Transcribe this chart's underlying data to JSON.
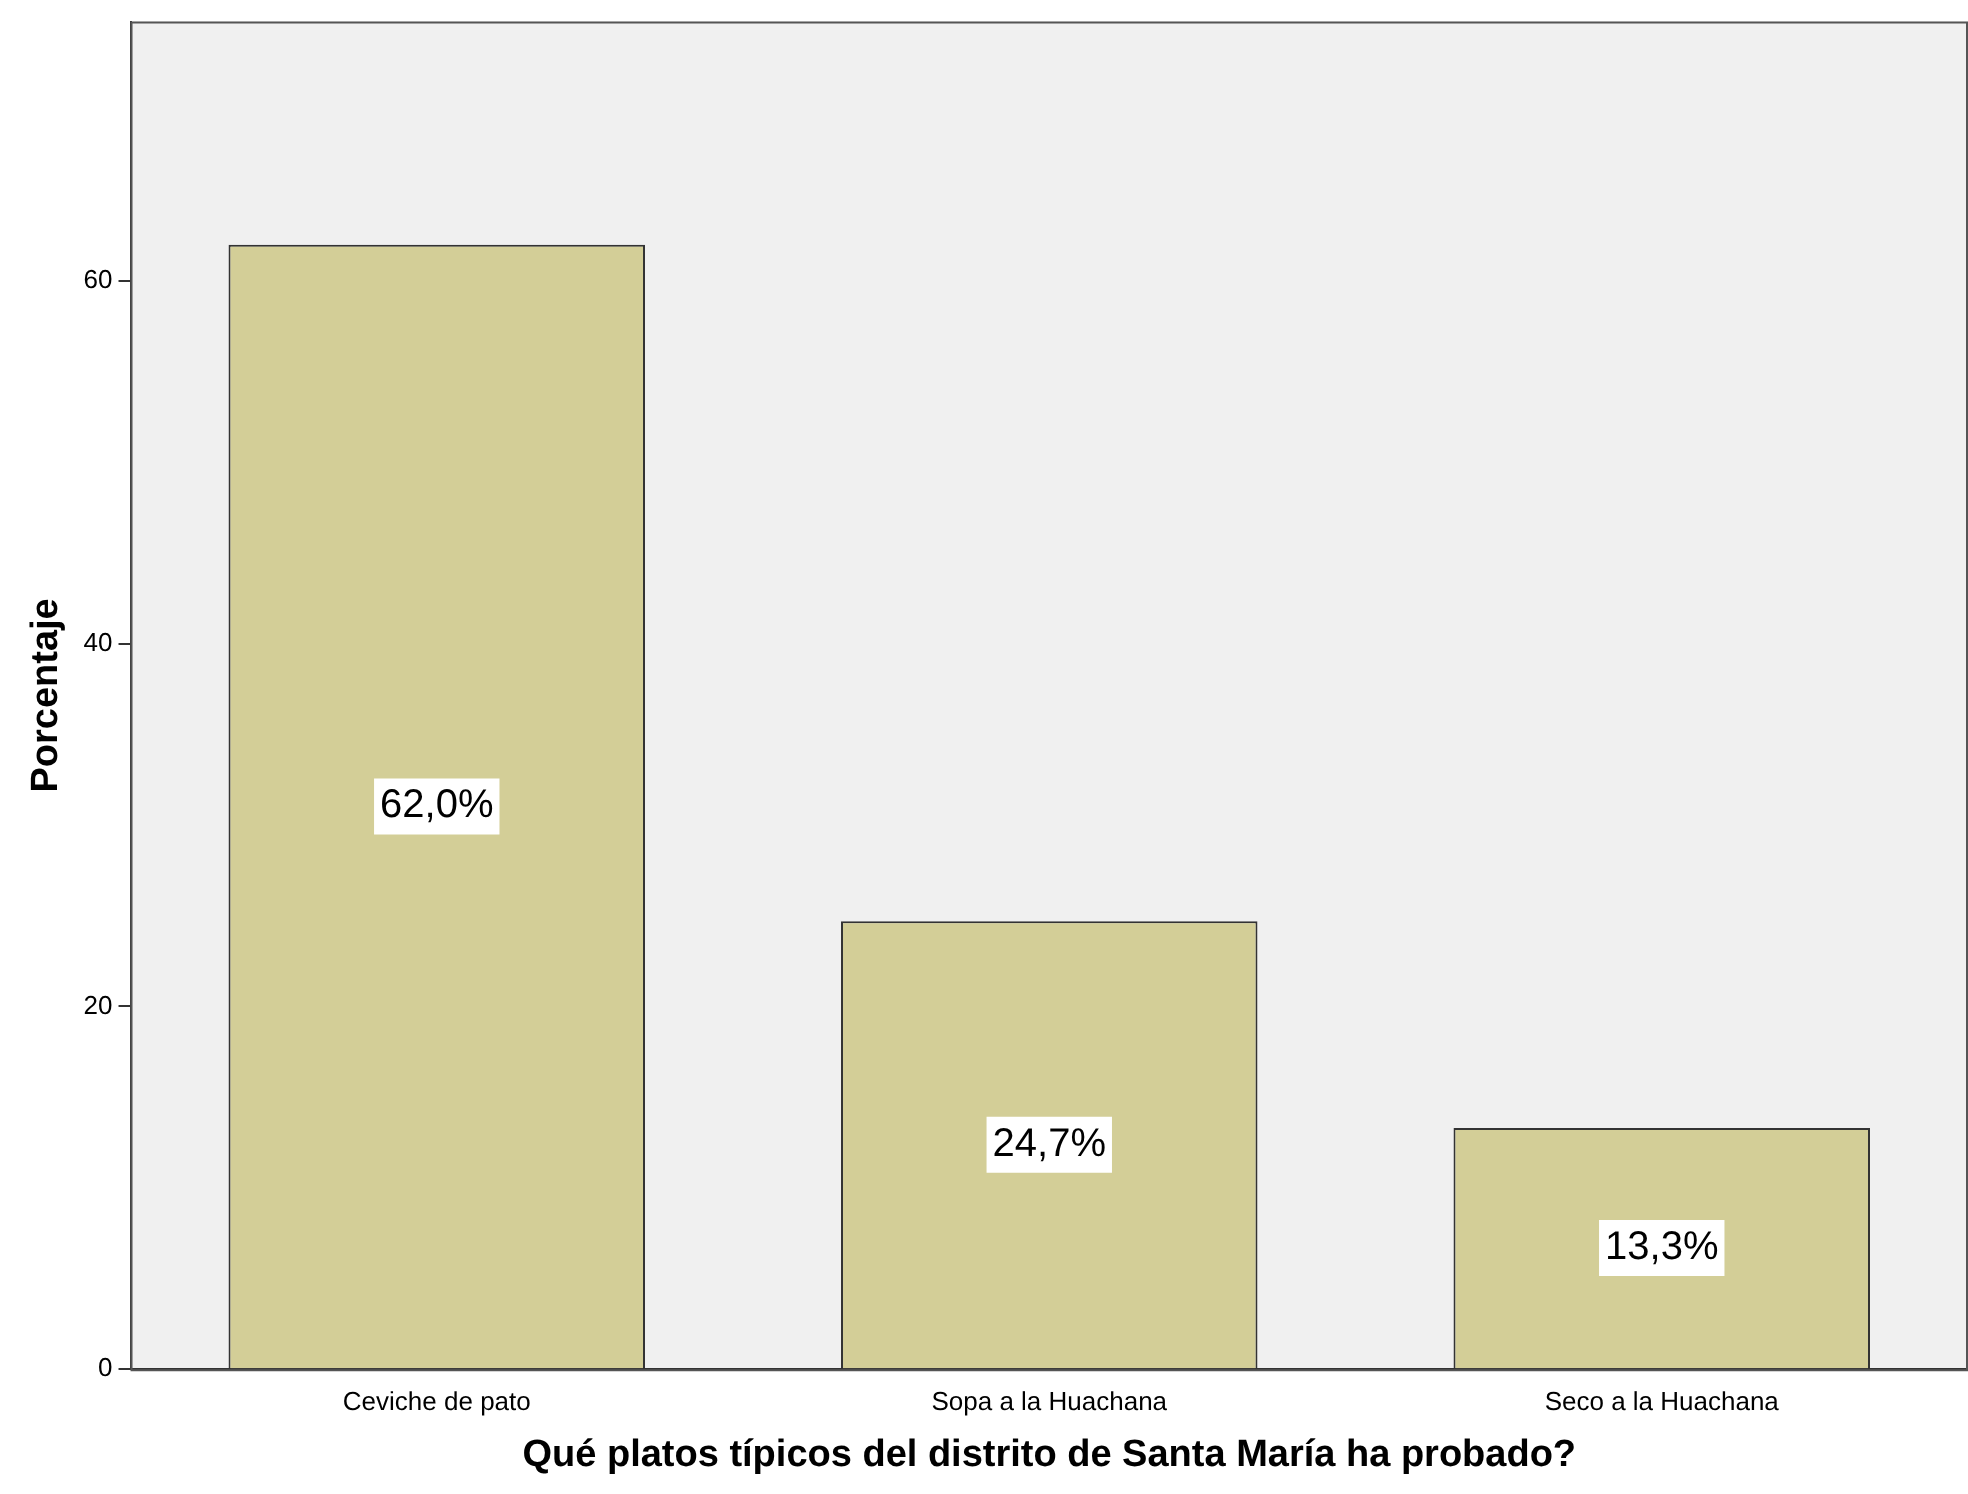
{
  "chart_data": {
    "type": "bar",
    "xlabel": "Qué platos típicos del distrito de Santa María ha probado?",
    "ylabel": "Porcentaje",
    "categories": [
      "Ceviche de pato",
      "Sopa a la Huachana",
      "Seco a la Huachana"
    ],
    "values": [
      62.0,
      24.7,
      13.3
    ],
    "value_labels": [
      "62,0%",
      "24,7%",
      "13,3%"
    ],
    "color": "#d3ce97",
    "ylim": [
      0,
      74.3
    ],
    "yticks": [
      0,
      20,
      40,
      60
    ],
    "grid": false,
    "legend": false
  }
}
